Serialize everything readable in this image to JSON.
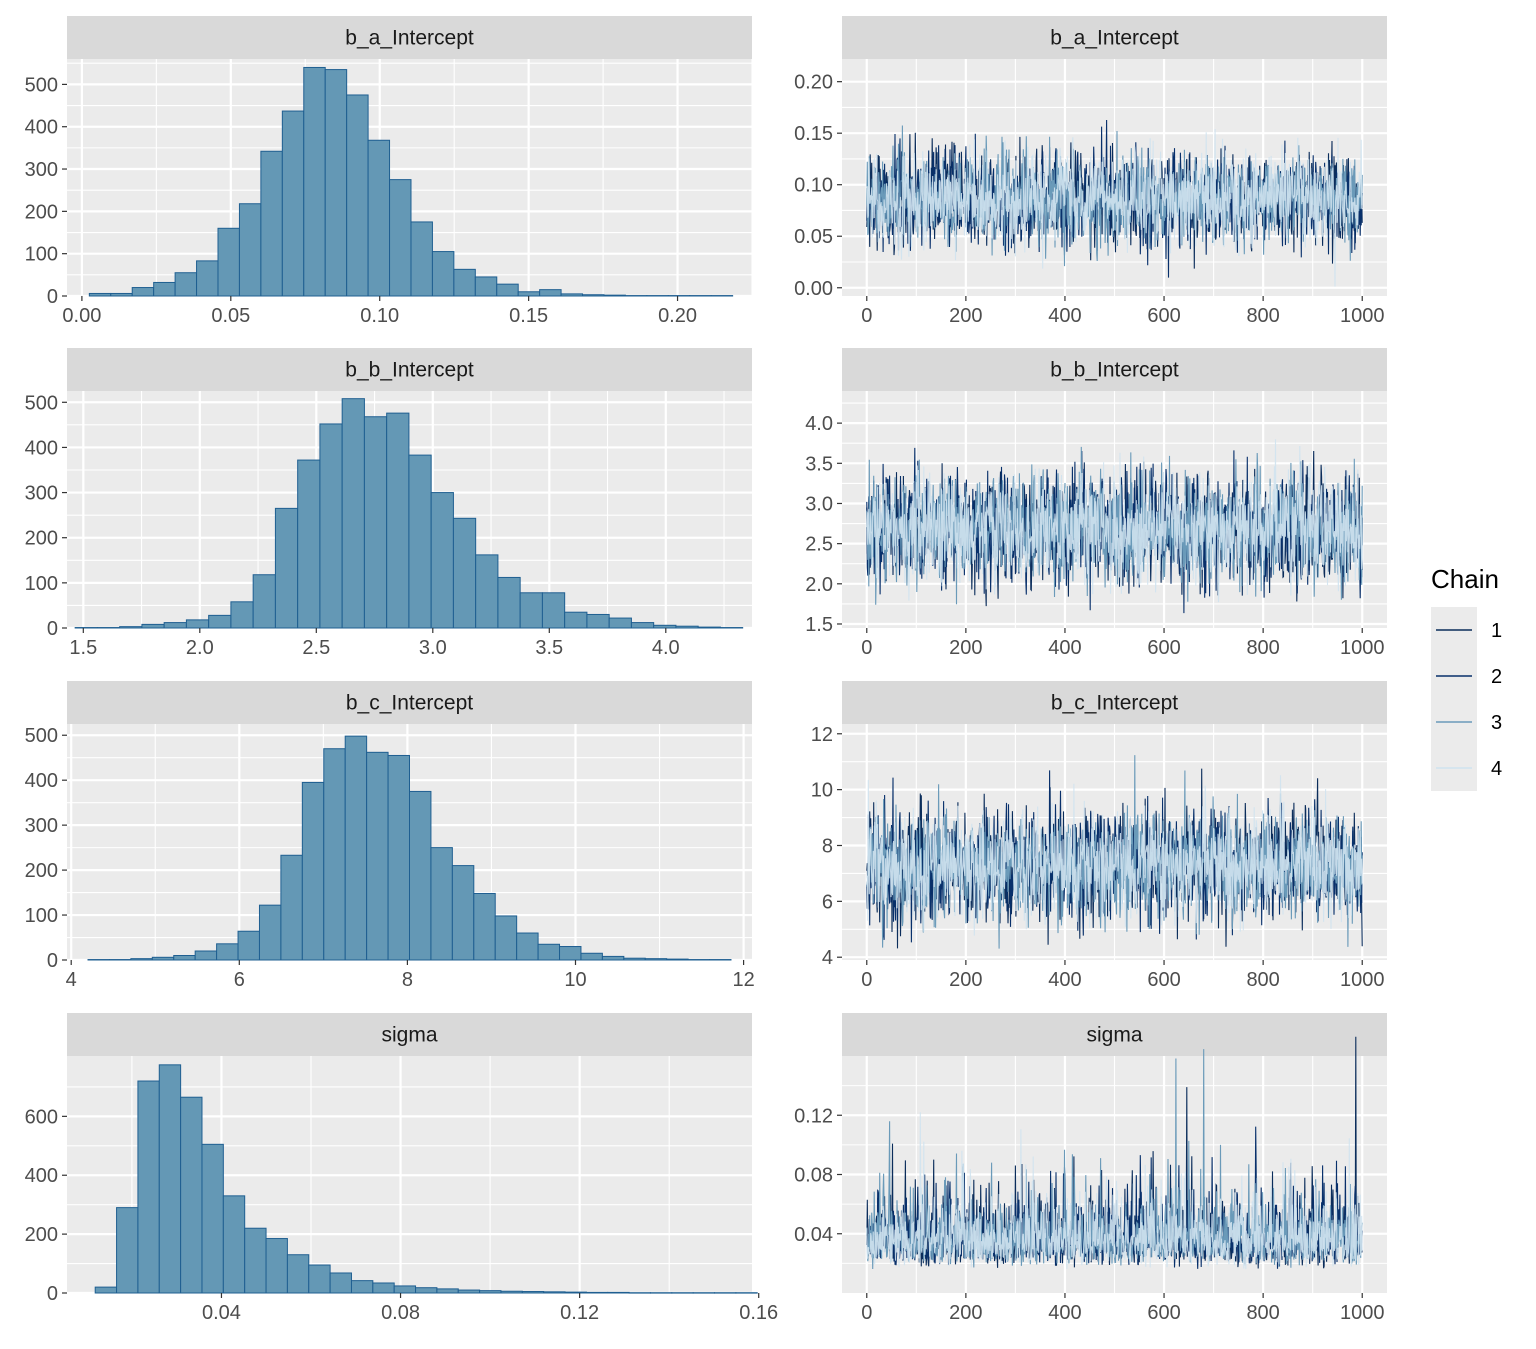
{
  "legend": {
    "title": "Chain",
    "items": [
      {
        "label": "1",
        "color": "#0B2D5B"
      },
      {
        "label": "2",
        "color": "#08306B"
      },
      {
        "label": "3",
        "color": "#6A9AB9"
      },
      {
        "label": "4",
        "color": "#D0E3F0"
      }
    ]
  },
  "colors": {
    "panel_bg": "#EBEBEB",
    "strip_bg": "#D9D9D9",
    "hist_fill": "#6498B5",
    "hist_stroke": "#1F5F91"
  },
  "chart_data": [
    {
      "type": "bar",
      "subtype": "histogram",
      "title": "b_a_Intercept",
      "xlim": [
        -0.005,
        0.225
      ],
      "ylim": [
        0,
        560
      ],
      "xticks": [
        {
          "v": 0.0,
          "label": "0.00"
        },
        {
          "v": 0.05,
          "label": "0.05"
        },
        {
          "v": 0.1,
          "label": "0.10"
        },
        {
          "v": 0.15,
          "label": "0.15"
        },
        {
          "v": 0.2,
          "label": "0.20"
        }
      ],
      "yticks": [
        {
          "v": 0,
          "label": "0"
        },
        {
          "v": 100,
          "label": "100"
        },
        {
          "v": 200,
          "label": "200"
        },
        {
          "v": 300,
          "label": "300"
        },
        {
          "v": 400,
          "label": "400"
        },
        {
          "v": 500,
          "label": "500"
        }
      ],
      "bin_start": 0.0025,
      "bin_width": 0.0072,
      "counts": [
        6,
        6,
        20,
        32,
        55,
        83,
        160,
        218,
        342,
        437,
        540,
        535,
        475,
        368,
        275,
        175,
        105,
        63,
        45,
        28,
        10,
        15,
        5,
        3,
        2,
        1,
        1,
        1,
        1,
        1
      ]
    },
    {
      "type": "line",
      "title": "b_a_Intercept",
      "xlim": [
        -50,
        1050
      ],
      "ylim": [
        -0.008,
        0.222
      ],
      "xticks": [
        {
          "v": 0,
          "label": "0"
        },
        {
          "v": 200,
          "label": "200"
        },
        {
          "v": 400,
          "label": "400"
        },
        {
          "v": 600,
          "label": "600"
        },
        {
          "v": 800,
          "label": "800"
        },
        {
          "v": 1000,
          "label": "1000"
        }
      ],
      "yticks": [
        {
          "v": 0.0,
          "label": "0.00"
        },
        {
          "v": 0.05,
          "label": "0.05"
        },
        {
          "v": 0.1,
          "label": "0.10"
        },
        {
          "v": 0.15,
          "label": "0.15"
        },
        {
          "v": 0.2,
          "label": "0.20"
        }
      ],
      "iterations": 1000,
      "center": 0.086,
      "spread": 0.022,
      "floor": 0.0,
      "series": [
        {
          "name": "1"
        },
        {
          "name": "2"
        },
        {
          "name": "3"
        },
        {
          "name": "4"
        }
      ]
    },
    {
      "type": "bar",
      "subtype": "histogram",
      "title": "b_b_Intercept",
      "xlim": [
        1.43,
        4.37
      ],
      "ylim": [
        0,
        525
      ],
      "xticks": [
        {
          "v": 1.5,
          "label": "1.5"
        },
        {
          "v": 2.0,
          "label": "2.0"
        },
        {
          "v": 2.5,
          "label": "2.5"
        },
        {
          "v": 3.0,
          "label": "3.0"
        },
        {
          "v": 3.5,
          "label": "3.5"
        },
        {
          "v": 4.0,
          "label": "4.0"
        }
      ],
      "yticks": [
        {
          "v": 0,
          "label": "0"
        },
        {
          "v": 100,
          "label": "100"
        },
        {
          "v": 200,
          "label": "200"
        },
        {
          "v": 300,
          "label": "300"
        },
        {
          "v": 400,
          "label": "400"
        },
        {
          "v": 500,
          "label": "500"
        }
      ],
      "bin_start": 1.465,
      "bin_width": 0.0955,
      "counts": [
        1,
        1,
        3,
        8,
        12,
        18,
        28,
        58,
        118,
        265,
        372,
        452,
        508,
        468,
        476,
        383,
        300,
        243,
        162,
        112,
        78,
        78,
        35,
        30,
        22,
        12,
        6,
        4,
        2,
        1
      ]
    },
    {
      "type": "line",
      "title": "b_b_Intercept",
      "xlim": [
        -50,
        1050
      ],
      "ylim": [
        1.45,
        4.4
      ],
      "xticks": [
        {
          "v": 0,
          "label": "0"
        },
        {
          "v": 200,
          "label": "200"
        },
        {
          "v": 400,
          "label": "400"
        },
        {
          "v": 600,
          "label": "600"
        },
        {
          "v": 800,
          "label": "800"
        },
        {
          "v": 1000,
          "label": "1000"
        }
      ],
      "yticks": [
        {
          "v": 1.5,
          "label": "1.5"
        },
        {
          "v": 2.0,
          "label": "2.0"
        },
        {
          "v": 2.5,
          "label": "2.5"
        },
        {
          "v": 3.0,
          "label": "3.0"
        },
        {
          "v": 3.5,
          "label": "3.5"
        },
        {
          "v": 4.0,
          "label": "4.0"
        }
      ],
      "iterations": 1000,
      "center": 2.68,
      "spread": 0.33,
      "floor": 1.5,
      "series": [
        {
          "name": "1"
        },
        {
          "name": "2"
        },
        {
          "name": "3"
        },
        {
          "name": "4"
        }
      ]
    },
    {
      "type": "bar",
      "subtype": "histogram",
      "title": "b_c_Intercept",
      "xlim": [
        3.95,
        12.1
      ],
      "ylim": [
        0,
        525
      ],
      "xticks": [
        {
          "v": 4,
          "label": "4"
        },
        {
          "v": 6,
          "label": "6"
        },
        {
          "v": 8,
          "label": "8"
        },
        {
          "v": 10,
          "label": "10"
        },
        {
          "v": 12,
          "label": "12"
        }
      ],
      "yticks": [
        {
          "v": 0,
          "label": "0"
        },
        {
          "v": 100,
          "label": "100"
        },
        {
          "v": 200,
          "label": "200"
        },
        {
          "v": 300,
          "label": "300"
        },
        {
          "v": 400,
          "label": "400"
        },
        {
          "v": 500,
          "label": "500"
        }
      ],
      "bin_start": 4.2,
      "bin_width": 0.255,
      "counts": [
        1,
        1,
        3,
        6,
        10,
        20,
        36,
        64,
        122,
        233,
        395,
        470,
        498,
        462,
        455,
        375,
        250,
        210,
        148,
        98,
        60,
        35,
        30,
        15,
        8,
        4,
        3,
        2,
        1,
        1
      ]
    },
    {
      "type": "line",
      "title": "b_c_Intercept",
      "xlim": [
        -50,
        1050
      ],
      "ylim": [
        3.9,
        12.35
      ],
      "xticks": [
        {
          "v": 0,
          "label": "0"
        },
        {
          "v": 200,
          "label": "200"
        },
        {
          "v": 400,
          "label": "400"
        },
        {
          "v": 600,
          "label": "600"
        },
        {
          "v": 800,
          "label": "800"
        },
        {
          "v": 1000,
          "label": "1000"
        }
      ],
      "yticks": [
        {
          "v": 4,
          "label": "4"
        },
        {
          "v": 6,
          "label": "6"
        },
        {
          "v": 8,
          "label": "8"
        },
        {
          "v": 10,
          "label": "10"
        },
        {
          "v": 12,
          "label": "12"
        }
      ],
      "iterations": 1000,
      "center": 7.3,
      "spread": 0.95,
      "floor": 4.3,
      "series": [
        {
          "name": "1"
        },
        {
          "name": "2"
        },
        {
          "name": "3"
        },
        {
          "name": "4"
        }
      ]
    },
    {
      "type": "bar",
      "subtype": "histogram",
      "title": "sigma",
      "xlim": [
        0.0055,
        0.1585
      ],
      "ylim": [
        0,
        805
      ],
      "xticks": [
        {
          "v": 0.04,
          "label": "0.04"
        },
        {
          "v": 0.08,
          "label": "0.08"
        },
        {
          "v": 0.12,
          "label": "0.12"
        },
        {
          "v": 0.16,
          "label": "0.16"
        }
      ],
      "yticks": [
        {
          "v": 0,
          "label": "0"
        },
        {
          "v": 200,
          "label": "200"
        },
        {
          "v": 400,
          "label": "400"
        },
        {
          "v": 600,
          "label": "600"
        }
      ],
      "bin_start": 0.0118,
      "bin_width": 0.00477,
      "counts": [
        20,
        290,
        720,
        775,
        665,
        505,
        330,
        220,
        185,
        130,
        95,
        68,
        42,
        34,
        24,
        18,
        14,
        10,
        8,
        6,
        5,
        4,
        3,
        2,
        2,
        1,
        1,
        1,
        1,
        1,
        1
      ]
    },
    {
      "type": "line",
      "title": "sigma",
      "xlim": [
        -50,
        1050
      ],
      "ylim": [
        0.0,
        0.16
      ],
      "xticks": [
        {
          "v": 0,
          "label": "0"
        },
        {
          "v": 200,
          "label": "200"
        },
        {
          "v": 400,
          "label": "400"
        },
        {
          "v": 600,
          "label": "600"
        },
        {
          "v": 800,
          "label": "800"
        },
        {
          "v": 1000,
          "label": "1000"
        }
      ],
      "yticks": [
        {
          "v": 0.04,
          "label": "0.04"
        },
        {
          "v": 0.08,
          "label": "0.08"
        },
        {
          "v": 0.12,
          "label": "0.12"
        }
      ],
      "iterations": 1000,
      "center": 0.036,
      "spread": 0.012,
      "floor": 0.016,
      "skew": true,
      "series": [
        {
          "name": "1"
        },
        {
          "name": "2"
        },
        {
          "name": "3"
        },
        {
          "name": "4"
        }
      ]
    }
  ]
}
